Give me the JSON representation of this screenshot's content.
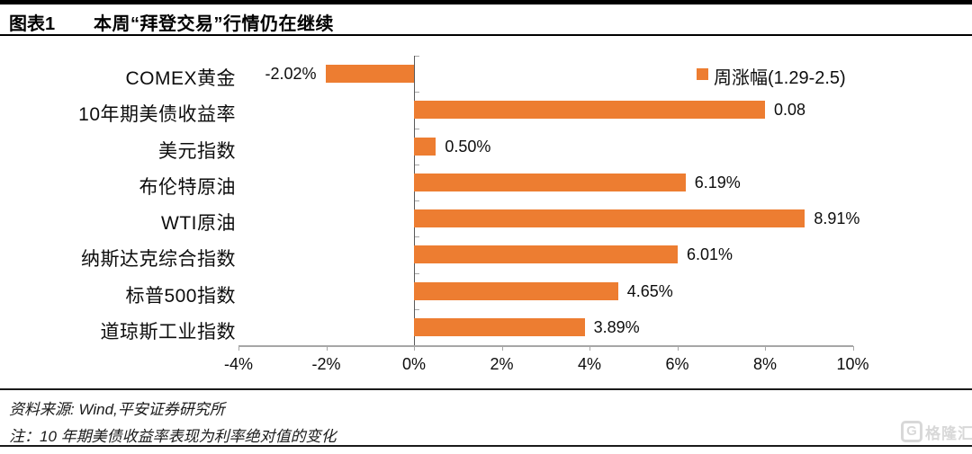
{
  "header": {
    "figure_label": "图表1",
    "title": "本周“拜登交易”行情仍在继续"
  },
  "legend": {
    "label": "周涨幅(1.29-2.5)"
  },
  "chart_data": {
    "type": "bar",
    "orientation": "horizontal",
    "title": "本周“拜登交易”行情仍在继续",
    "legend_entries": [
      "周涨幅(1.29-2.5)"
    ],
    "legend_position": "top-right",
    "xlim": [
      -4,
      10
    ],
    "x_tick_labels": [
      "-4%",
      "-2%",
      "0%",
      "2%",
      "4%",
      "6%",
      "8%",
      "10%"
    ],
    "grid": false,
    "bar_color": "#ED7D31",
    "bars": [
      {
        "category": "COMEX黄金",
        "display_value": "-2.02%",
        "plot_value": -2.02
      },
      {
        "category": "10年期美债收益率",
        "display_value": "0.08",
        "plot_value": 8
      },
      {
        "category": "美元指数",
        "display_value": "0.50%",
        "plot_value": 0.5
      },
      {
        "category": "布伦特原油",
        "display_value": "6.19%",
        "plot_value": 6.19
      },
      {
        "category": "WTI原油",
        "display_value": "8.91%",
        "plot_value": 8.91
      },
      {
        "category": "纳斯达克综合指数",
        "display_value": "6.01%",
        "plot_value": 6.01
      },
      {
        "category": "标普500指数",
        "display_value": "4.65%",
        "plot_value": 4.65
      },
      {
        "category": "道琼斯工业指数",
        "display_value": "3.89%",
        "plot_value": 3.89
      }
    ]
  },
  "footer": {
    "source": "资料来源: Wind,平安证券研究所",
    "note": "注：10 年期美债收益率表现为利率绝对值的变化"
  },
  "watermark": {
    "icon": "G",
    "text": "格隆汇"
  },
  "colors": {
    "bar": "#ED7D31",
    "zero_axis": "#595959",
    "axis": "#A6A6A6",
    "text": "#0d0d0d",
    "watermark": "#D8D8D8"
  }
}
